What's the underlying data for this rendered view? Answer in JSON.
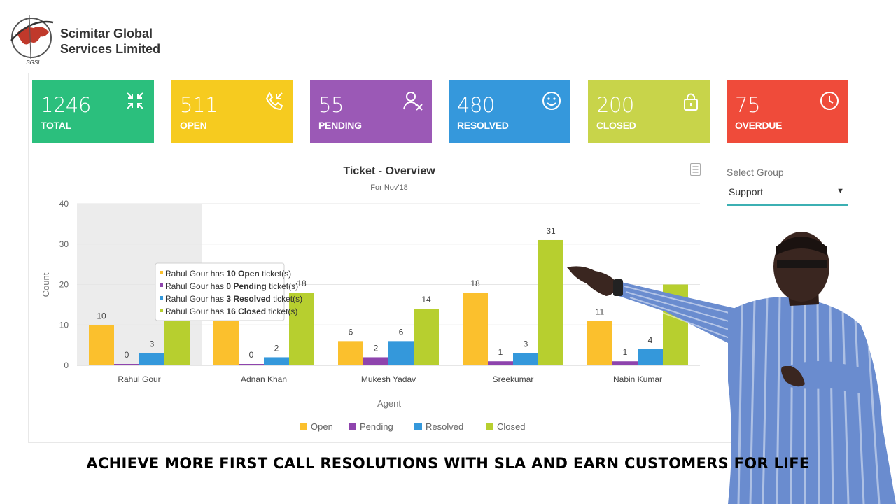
{
  "brand": {
    "line1": "Scimitar Global",
    "line2": "Services Limited",
    "logo_text": "SGSL"
  },
  "cards": [
    {
      "value": "1246",
      "label": "TOTAL",
      "color": "#2bbf7d",
      "icon": "compress-arrows-icon"
    },
    {
      "value": "511",
      "label": "OPEN",
      "color": "#f6cb1f",
      "icon": "phone-incoming-icon"
    },
    {
      "value": "55",
      "label": "PENDING",
      "color": "#9b59b6",
      "icon": "user-x-icon"
    },
    {
      "value": "480",
      "label": "RESOLVED",
      "color": "#3598dc",
      "icon": "smiley-icon"
    },
    {
      "value": "200",
      "label": "CLOSED",
      "color": "#c8d44a",
      "icon": "lock-icon"
    },
    {
      "value": "75",
      "label": "OVERDUE",
      "color": "#ef4b3a",
      "icon": "clock-icon"
    }
  ],
  "chart": {
    "title": "Ticket - Overview",
    "subtitle": "For Nov'18"
  },
  "select": {
    "label": "Select Group",
    "value": "Support"
  },
  "tooltip": {
    "agent": "Rahul Gour",
    "lines": [
      {
        "pre": "Rahul Gour has ",
        "bold": "10 Open",
        "post": " ticket(s)",
        "color": "#fbc02d"
      },
      {
        "pre": "Rahul Gour has ",
        "bold": "0 Pending",
        "post": " ticket(s)",
        "color": "#8e44ad"
      },
      {
        "pre": "Rahul Gour has ",
        "bold": "3 Resolved",
        "post": " ticket(s)",
        "color": "#3498db"
      },
      {
        "pre": "Rahul Gour has ",
        "bold": "16 Closed",
        "post": " ticket(s)",
        "color": "#b7cf2f"
      }
    ]
  },
  "chart_data": {
    "type": "bar",
    "title": "Ticket - Overview",
    "subtitle": "For Nov'18",
    "xlabel": "Agent",
    "ylabel": "Count",
    "ylim": [
      0,
      40
    ],
    "yticks": [
      0,
      10,
      20,
      30,
      40
    ],
    "grid": true,
    "legend": "bottom",
    "categories": [
      "Rahul Gour",
      "Adnan Khan",
      "Mukesh Yadav",
      "Sreekumar",
      "Nabin Kumar"
    ],
    "series": [
      {
        "name": "Open",
        "color": "#fbc02d",
        "values": [
          10,
          11,
          6,
          18,
          11
        ]
      },
      {
        "name": "Pending",
        "color": "#8e44ad",
        "values": [
          0,
          0,
          2,
          1,
          1
        ]
      },
      {
        "name": "Resolved",
        "color": "#3498db",
        "values": [
          3,
          2,
          6,
          3,
          4
        ]
      },
      {
        "name": "Closed",
        "color": "#b7cf2f",
        "values": [
          16,
          18,
          14,
          31,
          20
        ]
      }
    ],
    "hidden_labels": [
      [
        false,
        false,
        false,
        true
      ],
      [
        true,
        false,
        false,
        false
      ],
      [
        false,
        false,
        false,
        false
      ],
      [
        false,
        false,
        false,
        false
      ],
      [
        false,
        false,
        false,
        true
      ]
    ]
  },
  "tagline": "ACHIEVE MORE FIRST CALL RESOLUTIONS WITH SLA AND EARN CUSTOMERS FOR LIFE"
}
